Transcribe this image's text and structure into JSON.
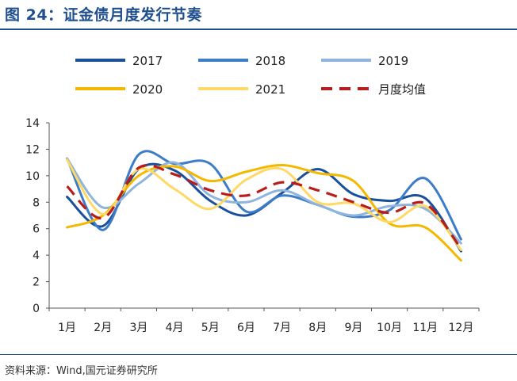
{
  "header": {
    "title": "图 24：证金债月度发行节奏"
  },
  "footer": {
    "source": "资料来源：Wind,国元证券研究所"
  },
  "chart_data": {
    "type": "line",
    "title": "",
    "xlabel": "",
    "ylabel": "",
    "ylim": [
      0,
      14
    ],
    "yticks": [
      0,
      2,
      4,
      6,
      8,
      10,
      12,
      14
    ],
    "grid": false,
    "legend_position": "top",
    "categories": [
      "1月",
      "2月",
      "3月",
      "4月",
      "5月",
      "6月",
      "7月",
      "8月",
      "9月",
      "10月",
      "11月",
      "12月"
    ],
    "series": [
      {
        "name": "2017",
        "color": "#1a4f9c",
        "dash": false,
        "values": [
          8.4,
          6.2,
          10.5,
          10.4,
          8.1,
          7.0,
          8.7,
          10.5,
          8.6,
          8.1,
          8.3,
          4.3
        ]
      },
      {
        "name": "2018",
        "color": "#3d7cc9",
        "dash": false,
        "values": [
          11.3,
          5.9,
          11.6,
          10.9,
          10.9,
          7.3,
          8.5,
          7.8,
          6.9,
          7.4,
          9.8,
          5.2
        ]
      },
      {
        "name": "2019",
        "color": "#8fb4de",
        "dash": false,
        "values": [
          11.3,
          7.6,
          9.4,
          11.0,
          8.5,
          8.0,
          8.9,
          7.8,
          7.0,
          7.7,
          7.5,
          4.9
        ]
      },
      {
        "name": "2020",
        "color": "#f5b800",
        "dash": false,
        "values": [
          6.1,
          7.0,
          10.0,
          10.7,
          9.6,
          10.3,
          10.8,
          10.2,
          9.6,
          6.4,
          6.1,
          3.6
        ]
      },
      {
        "name": "2021",
        "color": "#ffd966",
        "dash": false,
        "values": [
          11.2,
          7.1,
          10.5,
          9.0,
          7.5,
          9.7,
          10.5,
          8.0,
          7.9,
          6.5,
          7.7,
          4.4
        ]
      },
      {
        "name": "月度均值",
        "color": "#b81c1c",
        "dash": true,
        "values": [
          9.2,
          6.8,
          10.6,
          10.1,
          8.9,
          8.5,
          9.5,
          8.9,
          8.0,
          7.2,
          7.9,
          4.5
        ]
      }
    ]
  }
}
